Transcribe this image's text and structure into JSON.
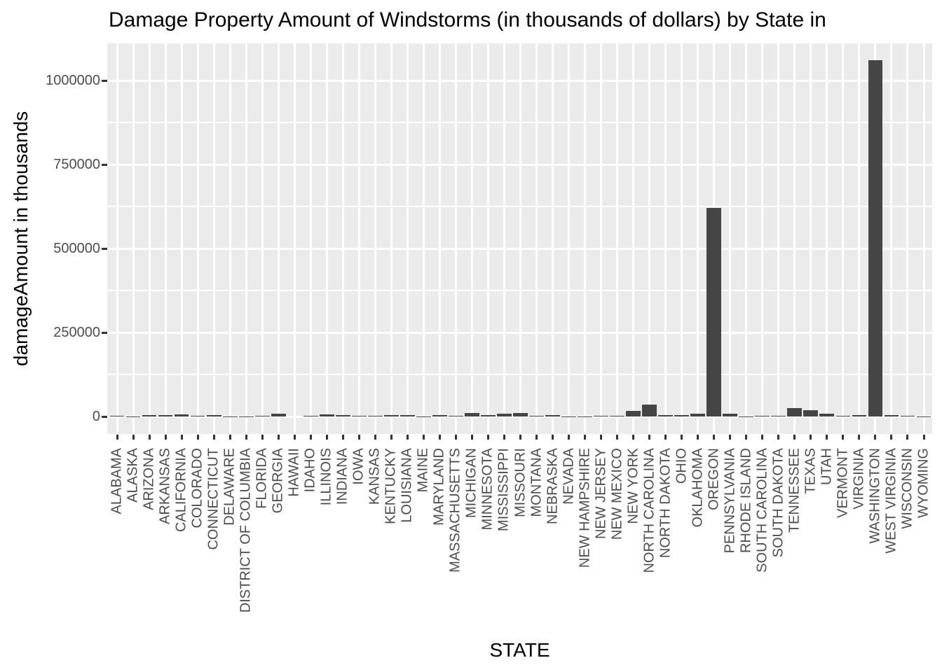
{
  "chart_data": {
    "type": "bar",
    "title": "Damage Property Amount of Windstorms (in thousands of dollars) by State in",
    "xlabel": "STATE",
    "ylabel": "damageAmount in thousands",
    "categories": [
      "ALABAMA",
      "ALASKA",
      "ARIZONA",
      "ARKANSAS",
      "CALIFORNIA",
      "COLORADO",
      "CONNECTICUT",
      "DELAWARE",
      "DISTRICT OF COLUMBIA",
      "FLORIDA",
      "GEORGIA",
      "HAWAII",
      "IDAHO",
      "ILLINOIS",
      "INDIANA",
      "IOWA",
      "KANSAS",
      "KENTUCKY",
      "LOUISIANA",
      "MAINE",
      "MARYLAND",
      "MASSACHUSETTS",
      "MICHIGAN",
      "MINNESOTA",
      "MISSISSIPPI",
      "MISSOURI",
      "MONTANA",
      "NEBRASKA",
      "NEVADA",
      "NEW HAMPSHIRE",
      "NEW JERSEY",
      "NEW MEXICO",
      "NEW YORK",
      "NORTH CAROLINA",
      "NORTH DAKOTA",
      "OHIO",
      "OKLAHOMA",
      "OREGON",
      "PENNSYLVANIA",
      "RHODE ISLAND",
      "SOUTH CAROLINA",
      "SOUTH DAKOTA",
      "TENNESSEE",
      "TEXAS",
      "UTAH",
      "VERMONT",
      "VIRGINIA",
      "WASHINGTON",
      "WEST VIRGINIA",
      "WISCONSIN",
      "WYOMING"
    ],
    "values": [
      1500,
      200,
      4000,
      4000,
      6000,
      1500,
      3500,
      200,
      1000,
      1500,
      8000,
      100,
      3000,
      5500,
      4000,
      1500,
      3000,
      5000,
      4000,
      200,
      4000,
      2000,
      9500,
      4000,
      8000,
      10000,
      2000,
      4000,
      700,
      700,
      2000,
      1500,
      17000,
      36000,
      4000,
      4500,
      8000,
      620000,
      7500,
      700,
      2000,
      1500,
      25000,
      19000,
      9000,
      2000,
      4000,
      1060000,
      4000,
      3000,
      500
    ],
    "ylim": [
      -55650,
      1113000
    ],
    "yticks": [
      0,
      250000,
      500000,
      750000,
      1000000
    ],
    "ytick_labels": [
      "0",
      "250000",
      "500000",
      "750000",
      "1000000"
    ],
    "minor_gridlines": [
      125000,
      375000,
      625000,
      875000
    ],
    "grid": true,
    "legend_position": "none",
    "colors": {
      "bar": "#454545",
      "panel_background": "#EBEBEB",
      "gridline": "#FFFFFF",
      "axis_text": "#4D4D4D",
      "title_text": "#000000",
      "tick_mark": "#333333",
      "page_background": "#FFFFFF"
    }
  }
}
